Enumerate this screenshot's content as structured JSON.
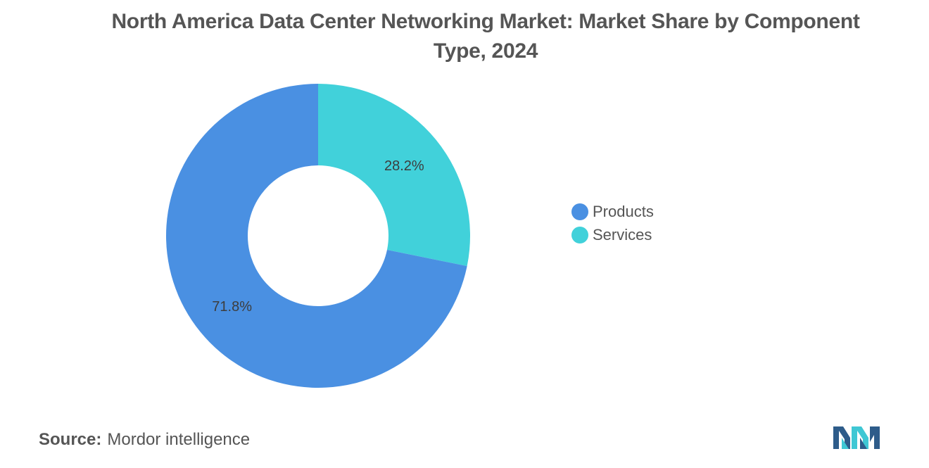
{
  "title": "North America Data Center Networking Market: Market Share by Component Type, 2024",
  "source": {
    "label": "Source:",
    "text": "Mordor intelligence"
  },
  "logo": {
    "icon": "mordor-intelligence-logo",
    "colors": [
      "#2e5c8a",
      "#3fc7d4"
    ]
  },
  "chart_data": {
    "type": "pie",
    "variant": "donut",
    "title": "North America Data Center Networking Market: Market Share by Component Type, 2024",
    "legend_placement": "right",
    "slices": [
      {
        "name": "Services",
        "value": 28.2,
        "label": "28.2%",
        "color": "#41d1da"
      },
      {
        "name": "Products",
        "value": 71.8,
        "label": "71.8%",
        "color": "#4a90e2"
      }
    ],
    "legend": [
      {
        "name": "Products",
        "color": "#4a90e2"
      },
      {
        "name": "Services",
        "color": "#41d1da"
      }
    ]
  }
}
